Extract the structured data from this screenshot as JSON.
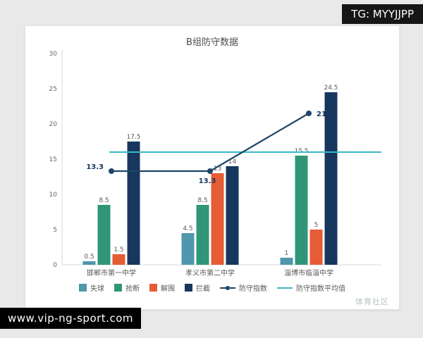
{
  "badges": {
    "tg": "TG: MYYJJPP",
    "site": "www.vip-ng-sport.com"
  },
  "watermark": "体育社区",
  "chart_data": {
    "type": "bar",
    "title": "B组防守数据",
    "categories": [
      "邯郸市第一中学",
      "孝义市第二中学",
      "淄博市临淄中学"
    ],
    "bar_series": [
      {
        "name": "失球",
        "color": "#4f97ad",
        "values": [
          0.5,
          4.5,
          1
        ]
      },
      {
        "name": "抢断",
        "color": "#2f9678",
        "values": [
          8.5,
          8.5,
          15.5
        ]
      },
      {
        "name": "解围",
        "color": "#e55c35",
        "values": [
          1.5,
          13,
          5
        ]
      },
      {
        "name": "拦截",
        "color": "#17375e",
        "values": [
          17.5,
          14,
          24.5
        ]
      }
    ],
    "line_series": [
      {
        "name": "防守指数",
        "color": "#1f4568",
        "values": [
          13.3,
          13.3,
          21.5
        ],
        "marker": "circle"
      },
      {
        "name": "防守指数平均值",
        "color": "#3bb8c4",
        "value": 16.0,
        "style": "horizontal"
      }
    ],
    "ylim": [
      0,
      30
    ],
    "yticks": [
      0,
      5,
      10,
      15,
      20,
      25,
      30
    ],
    "legend_position": "bottom"
  }
}
